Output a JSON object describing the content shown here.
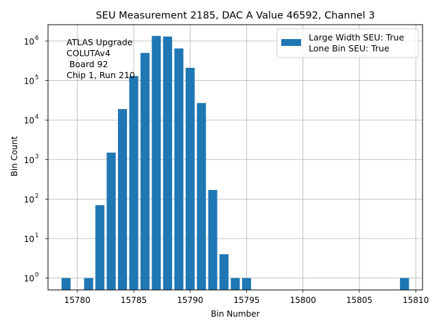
{
  "chart_data": {
    "type": "bar",
    "title": "SEU Measurement 2185, DAC A Value 46592, Channel 3",
    "xlabel": "Bin Number",
    "ylabel": "Bin Count",
    "yscale": "log",
    "xlim": [
      15777.4,
      15810.6
    ],
    "ylim": [
      0.5,
      2600000
    ],
    "grid": true,
    "x_ticks": [
      {
        "value": 15780,
        "label": "15780"
      },
      {
        "value": 15785,
        "label": "15785"
      },
      {
        "value": 15790,
        "label": "15790"
      },
      {
        "value": 15795,
        "label": "15795"
      },
      {
        "value": 15800,
        "label": "15800"
      },
      {
        "value": 15805,
        "label": "15805"
      },
      {
        "value": 15810,
        "label": "15810"
      }
    ],
    "y_ticks": [
      {
        "value": 1,
        "base": "10",
        "exp": "0"
      },
      {
        "value": 10,
        "base": "10",
        "exp": "1"
      },
      {
        "value": 100,
        "base": "10",
        "exp": "2"
      },
      {
        "value": 1000,
        "base": "10",
        "exp": "3"
      },
      {
        "value": 10000,
        "base": "10",
        "exp": "4"
      },
      {
        "value": 100000,
        "base": "10",
        "exp": "5"
      },
      {
        "value": 1000000,
        "base": "10",
        "exp": "6"
      }
    ],
    "bar_width": 0.8,
    "bar_color": "#1f77b4",
    "series": [
      {
        "name": "Large Width SEU: True\nLone Bin SEU: True",
        "x": [
          15779,
          15781,
          15782,
          15783,
          15784,
          15785,
          15786,
          15787,
          15788,
          15789,
          15790,
          15791,
          15792,
          15793,
          15794,
          15795,
          15809
        ],
        "values": [
          1,
          1,
          70,
          1500,
          19000,
          130000,
          500000,
          1350000,
          1300000,
          650000,
          210000,
          27000,
          170,
          4,
          1,
          1,
          1
        ]
      }
    ],
    "legend": {
      "position": "top-right",
      "line1": "Large Width SEU: True",
      "line2": "Lone Bin SEU: True"
    },
    "annotation": {
      "lines": [
        "ATLAS Upgrade",
        "COLUTAv4",
        " Board 92",
        "Chip 1, Run 210"
      ]
    }
  }
}
